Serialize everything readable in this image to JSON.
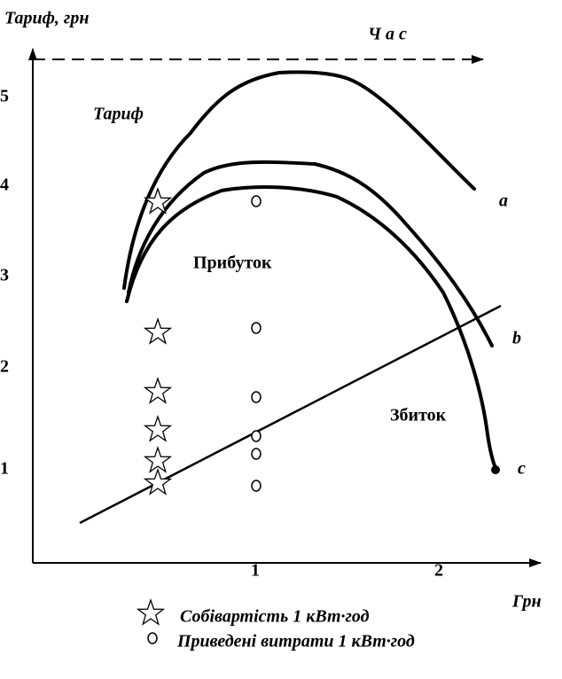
{
  "y_axis_label": "Тариф, грн",
  "time_label": "Ч а с",
  "y_ticks": [
    "5",
    "4",
    "3",
    "2",
    "1"
  ],
  "x_ticks": [
    "1",
    "2"
  ],
  "x_axis_label": "Грн",
  "regions": {
    "tariff": "Тариф",
    "profit": "Прибуток",
    "loss": "Збиток"
  },
  "curve_labels": [
    "a",
    "b",
    "c"
  ],
  "legend": [
    "Собівартість 1 кВт·год",
    "Приведені витрати 1 кВт·год"
  ]
}
